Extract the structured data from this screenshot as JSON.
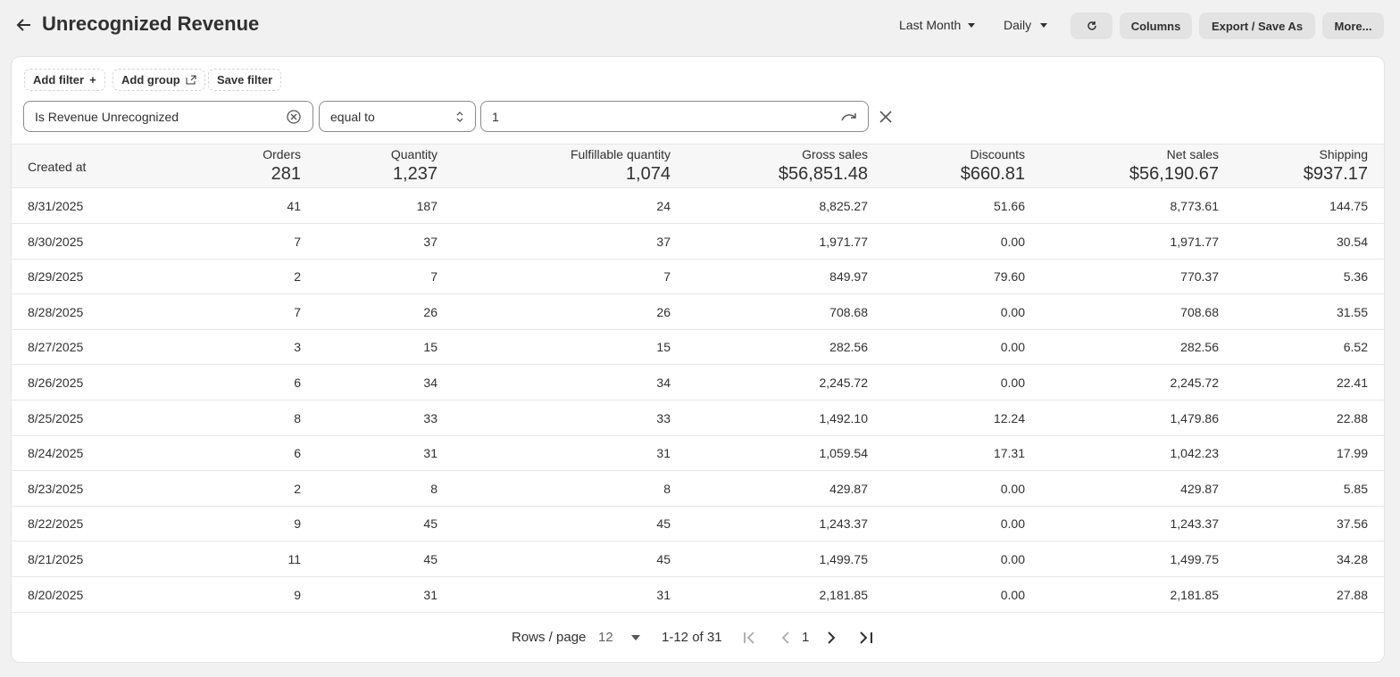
{
  "header": {
    "title": "Unrecognized Revenue",
    "range": "Last Month",
    "interval": "Daily",
    "buttons": [
      "Columns",
      "Export / Save As",
      "More..."
    ]
  },
  "filters": {
    "actions": [
      "Add filter",
      "Add group",
      "Save filter"
    ],
    "field": "Is Revenue Unrecognized",
    "operator": "equal to",
    "value": "1"
  },
  "table": {
    "columns": [
      "Created at",
      "Orders",
      "Quantity",
      "Fulfillable quantity",
      "Gross sales",
      "Discounts",
      "Net sales",
      "Shipping"
    ],
    "totals": [
      "281",
      "1,237",
      "1,074",
      "$56,851.48",
      "$660.81",
      "$56,190.67",
      "$937.17"
    ],
    "rows": [
      [
        "8/31/2025",
        "41",
        "187",
        "24",
        "8,825.27",
        "51.66",
        "8,773.61",
        "144.75"
      ],
      [
        "8/30/2025",
        "7",
        "37",
        "37",
        "1,971.77",
        "0.00",
        "1,971.77",
        "30.54"
      ],
      [
        "8/29/2025",
        "2",
        "7",
        "7",
        "849.97",
        "79.60",
        "770.37",
        "5.36"
      ],
      [
        "8/28/2025",
        "7",
        "26",
        "26",
        "708.68",
        "0.00",
        "708.68",
        "31.55"
      ],
      [
        "8/27/2025",
        "3",
        "15",
        "15",
        "282.56",
        "0.00",
        "282.56",
        "6.52"
      ],
      [
        "8/26/2025",
        "6",
        "34",
        "34",
        "2,245.72",
        "0.00",
        "2,245.72",
        "22.41"
      ],
      [
        "8/25/2025",
        "8",
        "33",
        "33",
        "1,492.10",
        "12.24",
        "1,479.86",
        "22.88"
      ],
      [
        "8/24/2025",
        "6",
        "31",
        "31",
        "1,059.54",
        "17.31",
        "1,042.23",
        "17.99"
      ],
      [
        "8/23/2025",
        "2",
        "8",
        "8",
        "429.87",
        "0.00",
        "429.87",
        "5.85"
      ],
      [
        "8/22/2025",
        "9",
        "45",
        "45",
        "1,243.37",
        "0.00",
        "1,243.37",
        "37.56"
      ],
      [
        "8/21/2025",
        "11",
        "45",
        "45",
        "1,499.75",
        "0.00",
        "1,499.75",
        "34.28"
      ],
      [
        "8/20/2025",
        "9",
        "31",
        "31",
        "2,181.85",
        "0.00",
        "2,181.85",
        "27.88"
      ]
    ]
  },
  "pagination": {
    "rows_label": "Rows / page",
    "rows_per_page": "12",
    "range": "1-12 of 31",
    "page": "1"
  }
}
